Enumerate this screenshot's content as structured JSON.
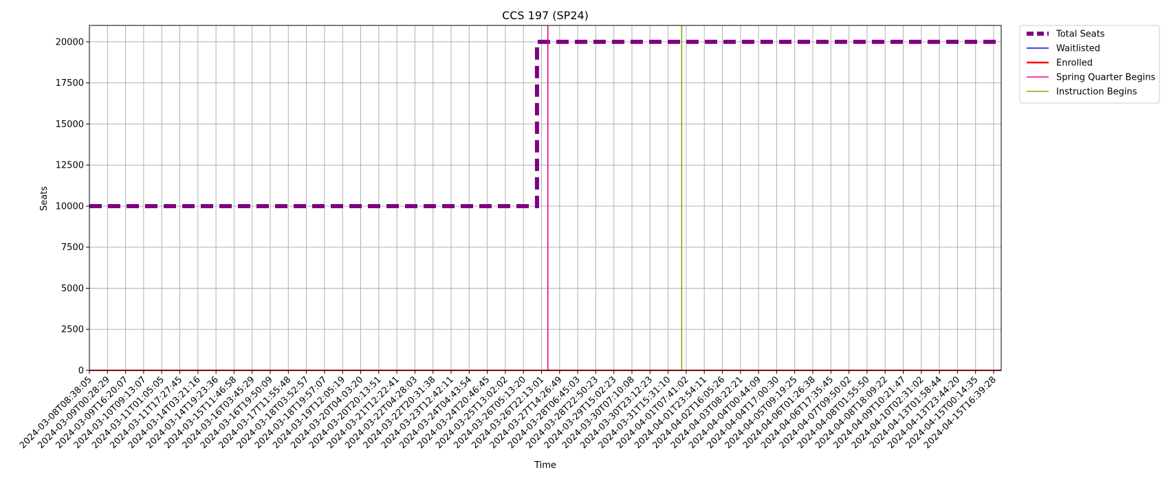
{
  "chart_data": {
    "type": "line",
    "title": "CCS 197 (SP24)",
    "xlabel": "Time",
    "ylabel": "Seats",
    "ylim": [
      0,
      21000
    ],
    "yticks": [
      0,
      2500,
      5000,
      7500,
      10000,
      12500,
      15000,
      17500,
      20000
    ],
    "grid": true,
    "legend_position": "outside-top-right",
    "x_categories": [
      "2024-03-08T08:38:05",
      "2024-03-09T00:28:29",
      "2024-03-09T16:20:07",
      "2024-03-10T09:13:07",
      "2024-03-11T01:05:05",
      "2024-03-11T17:27:45",
      "2024-03-14T03:21:16",
      "2024-03-14T19:23:36",
      "2024-03-15T11:46:58",
      "2024-03-16T03:45:29",
      "2024-03-16T19:50:09",
      "2024-03-17T11:55:48",
      "2024-03-18T03:52:57",
      "2024-03-18T19:57:07",
      "2024-03-19T12:05:19",
      "2024-03-20T04:03:20",
      "2024-03-20T20:13:51",
      "2024-03-21T12:22:41",
      "2024-03-22T04:28:03",
      "2024-03-22T20:31:38",
      "2024-03-23T12:42:11",
      "2024-03-24T04:43:54",
      "2024-03-24T20:46:45",
      "2024-03-25T13:02:02",
      "2024-03-26T05:13:20",
      "2024-03-26T22:13:01",
      "2024-03-27T14:26:49",
      "2024-03-28T06:45:03",
      "2024-03-28T22:50:23",
      "2024-03-29T15:02:23",
      "2024-03-30T07:10:08",
      "2024-03-30T23:12:23",
      "2024-03-31T15:31:10",
      "2024-04-01T07:41:02",
      "2024-04-01T23:54:11",
      "2024-04-02T16:05:26",
      "2024-04-03T08:22:21",
      "2024-04-04T00:44:09",
      "2024-04-04T17:00:30",
      "2024-04-05T09:19:25",
      "2024-04-06T01:26:38",
      "2024-04-06T17:35:45",
      "2024-04-07T09:50:02",
      "2024-04-08T01:55:50",
      "2024-04-08T18:09:22",
      "2024-04-09T10:21:47",
      "2024-04-10T02:31:02",
      "2024-04-13T01:58:44",
      "2024-04-13T23:44:20",
      "2024-04-15T00:14:35",
      "2024-04-15T16:39:28"
    ],
    "series": [
      {
        "name": "Total Seats",
        "color": "#800080",
        "style": "dashed-thick",
        "step": {
          "before": 10000,
          "after": 20000,
          "change_after_category_index": 24
        }
      },
      {
        "name": "Waitlisted",
        "color": "#0000ff",
        "style": "solid",
        "constant_value": 0
      },
      {
        "name": "Enrolled",
        "color": "#ff0000",
        "style": "solid",
        "constant_value": 0
      }
    ],
    "vertical_markers": [
      {
        "name": "Spring Quarter Begins",
        "color": "#e8008a",
        "category_position": 25.35
      },
      {
        "name": "Instruction Begins",
        "color": "#7fae00",
        "category_position": 32.75
      }
    ],
    "legend": [
      "Total Seats",
      "Waitlisted",
      "Enrolled",
      "Spring Quarter Begins",
      "Instruction Begins"
    ]
  }
}
